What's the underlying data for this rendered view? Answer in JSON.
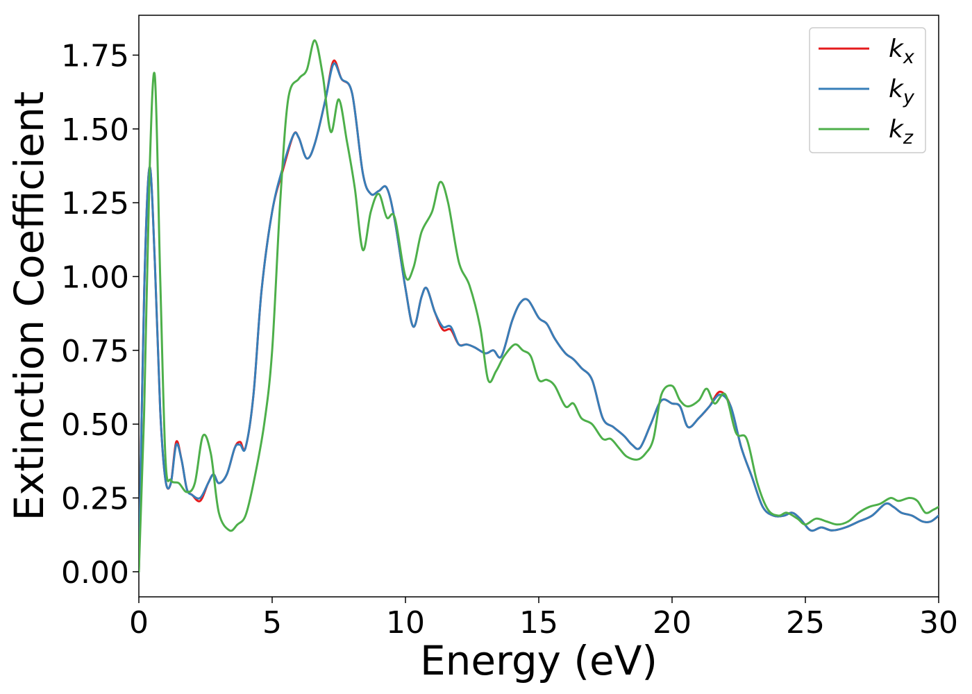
{
  "chart_data": {
    "type": "line",
    "xlabel": "Energy (eV)",
    "ylabel": "Extinction Coefficient",
    "xlim": [
      0,
      30
    ],
    "ylim": [
      -0.085,
      1.885
    ],
    "xticks": [
      0,
      5,
      10,
      15,
      20,
      25,
      30
    ],
    "xtick_labels": [
      "0",
      "5",
      "10",
      "15",
      "20",
      "25",
      "30"
    ],
    "yticks": [
      0.0,
      0.25,
      0.5,
      0.75,
      1.0,
      1.25,
      1.5,
      1.75
    ],
    "ytick_labels": [
      "0.00",
      "0.25",
      "0.50",
      "0.75",
      "1.00",
      "1.25",
      "1.50",
      "1.75"
    ],
    "grid": false,
    "legend_position": "top-right",
    "series": [
      {
        "name": "k",
        "subscript": "x",
        "color": "#e41a1c",
        "x": [
          0,
          0.2,
          0.4,
          0.6,
          0.8,
          1.0,
          1.2,
          1.4,
          1.6,
          1.8,
          2.0,
          2.3,
          2.6,
          2.8,
          3.0,
          3.3,
          3.6,
          3.8,
          4.0,
          4.3,
          4.6,
          5.0,
          5.4,
          5.8,
          6.0,
          6.3,
          6.6,
          7.0,
          7.3,
          7.6,
          8.0,
          8.4,
          8.7,
          9.0,
          9.3,
          9.6,
          10.0,
          10.3,
          10.6,
          10.8,
          11.1,
          11.4,
          11.7,
          12.0,
          12.3,
          12.6,
          13.0,
          13.3,
          13.6,
          14.0,
          14.3,
          14.6,
          15.0,
          15.3,
          15.6,
          16.0,
          16.3,
          16.6,
          17.0,
          17.4,
          17.8,
          18.2,
          18.5,
          18.8,
          19.2,
          19.6,
          20.0,
          20.3,
          20.6,
          21.0,
          21.4,
          21.8,
          22.2,
          22.6,
          23.0,
          23.4,
          23.8,
          24.2,
          24.5,
          24.8,
          25.2,
          25.6,
          26.0,
          26.5,
          27.0,
          27.5,
          28.0,
          28.3,
          28.6,
          29.0,
          29.4,
          29.7,
          30.0
        ],
        "y": [
          0.0,
          0.95,
          1.37,
          1.05,
          0.55,
          0.31,
          0.3,
          0.44,
          0.38,
          0.28,
          0.26,
          0.24,
          0.3,
          0.33,
          0.3,
          0.33,
          0.42,
          0.44,
          0.42,
          0.6,
          0.95,
          1.22,
          1.36,
          1.48,
          1.47,
          1.4,
          1.45,
          1.6,
          1.73,
          1.67,
          1.62,
          1.35,
          1.28,
          1.29,
          1.3,
          1.19,
          0.96,
          0.83,
          0.93,
          0.96,
          0.88,
          0.82,
          0.82,
          0.77,
          0.77,
          0.76,
          0.74,
          0.75,
          0.73,
          0.85,
          0.91,
          0.92,
          0.86,
          0.84,
          0.79,
          0.74,
          0.72,
          0.69,
          0.65,
          0.52,
          0.49,
          0.46,
          0.43,
          0.42,
          0.5,
          0.58,
          0.57,
          0.56,
          0.49,
          0.52,
          0.56,
          0.61,
          0.56,
          0.42,
          0.32,
          0.22,
          0.19,
          0.19,
          0.2,
          0.18,
          0.14,
          0.15,
          0.14,
          0.15,
          0.17,
          0.19,
          0.23,
          0.22,
          0.2,
          0.19,
          0.17,
          0.17,
          0.19
        ]
      },
      {
        "name": "k",
        "subscript": "y",
        "color": "#377eb8",
        "x": [
          0,
          0.2,
          0.4,
          0.6,
          0.8,
          1.0,
          1.2,
          1.4,
          1.6,
          1.8,
          2.0,
          2.3,
          2.6,
          2.8,
          3.0,
          3.3,
          3.6,
          3.8,
          4.0,
          4.3,
          4.6,
          5.0,
          5.4,
          5.8,
          6.0,
          6.3,
          6.6,
          7.0,
          7.3,
          7.6,
          8.0,
          8.4,
          8.7,
          9.0,
          9.3,
          9.6,
          10.0,
          10.3,
          10.6,
          10.8,
          11.1,
          11.4,
          11.7,
          12.0,
          12.3,
          12.6,
          13.0,
          13.3,
          13.6,
          14.0,
          14.3,
          14.6,
          15.0,
          15.3,
          15.6,
          16.0,
          16.3,
          16.6,
          17.0,
          17.4,
          17.8,
          18.2,
          18.5,
          18.8,
          19.2,
          19.6,
          20.0,
          20.3,
          20.6,
          21.0,
          21.4,
          21.8,
          22.2,
          22.6,
          23.0,
          23.4,
          23.8,
          24.2,
          24.5,
          24.8,
          25.2,
          25.6,
          26.0,
          26.5,
          27.0,
          27.5,
          28.0,
          28.3,
          28.6,
          29.0,
          29.4,
          29.7,
          30.0
        ],
        "y": [
          0.0,
          0.95,
          1.37,
          1.05,
          0.55,
          0.31,
          0.3,
          0.43,
          0.38,
          0.28,
          0.26,
          0.25,
          0.3,
          0.33,
          0.3,
          0.33,
          0.42,
          0.43,
          0.42,
          0.6,
          0.95,
          1.22,
          1.37,
          1.48,
          1.47,
          1.4,
          1.45,
          1.6,
          1.72,
          1.67,
          1.62,
          1.35,
          1.28,
          1.29,
          1.3,
          1.19,
          0.96,
          0.83,
          0.93,
          0.96,
          0.88,
          0.83,
          0.83,
          0.77,
          0.77,
          0.76,
          0.74,
          0.75,
          0.73,
          0.85,
          0.91,
          0.92,
          0.86,
          0.84,
          0.79,
          0.74,
          0.72,
          0.69,
          0.65,
          0.52,
          0.49,
          0.46,
          0.43,
          0.42,
          0.5,
          0.58,
          0.57,
          0.56,
          0.49,
          0.52,
          0.56,
          0.6,
          0.56,
          0.42,
          0.32,
          0.22,
          0.19,
          0.19,
          0.2,
          0.18,
          0.14,
          0.15,
          0.14,
          0.15,
          0.17,
          0.19,
          0.23,
          0.22,
          0.2,
          0.19,
          0.17,
          0.17,
          0.19
        ]
      },
      {
        "name": "k",
        "subscript": "z",
        "color": "#4daf4a",
        "x": [
          0,
          0.2,
          0.4,
          0.6,
          0.8,
          1.0,
          1.2,
          1.5,
          1.8,
          2.1,
          2.4,
          2.7,
          3.0,
          3.4,
          3.7,
          4.0,
          4.3,
          4.7,
          5.0,
          5.3,
          5.6,
          6.0,
          6.3,
          6.6,
          6.9,
          7.2,
          7.5,
          7.8,
          8.1,
          8.4,
          8.7,
          9.0,
          9.3,
          9.6,
          10.0,
          10.3,
          10.6,
          11.0,
          11.3,
          11.6,
          12.0,
          12.4,
          12.8,
          13.1,
          13.4,
          13.7,
          14.1,
          14.4,
          14.7,
          15.0,
          15.3,
          15.6,
          16.0,
          16.3,
          16.6,
          17.0,
          17.4,
          17.7,
          18.0,
          18.3,
          18.7,
          19.0,
          19.3,
          19.6,
          20.0,
          20.3,
          20.6,
          21.0,
          21.3,
          21.6,
          22.0,
          22.4,
          22.8,
          23.2,
          23.6,
          24.0,
          24.3,
          24.7,
          25.0,
          25.4,
          25.8,
          26.2,
          26.6,
          27.0,
          27.4,
          27.8,
          28.2,
          28.5,
          28.9,
          29.2,
          29.5,
          29.8,
          30.0
        ],
        "y": [
          0.0,
          0.55,
          1.35,
          1.68,
          1.0,
          0.38,
          0.31,
          0.3,
          0.27,
          0.3,
          0.46,
          0.4,
          0.2,
          0.14,
          0.16,
          0.19,
          0.3,
          0.5,
          0.75,
          1.25,
          1.6,
          1.67,
          1.7,
          1.8,
          1.68,
          1.49,
          1.6,
          1.46,
          1.3,
          1.09,
          1.22,
          1.28,
          1.2,
          1.2,
          1.0,
          1.03,
          1.15,
          1.22,
          1.32,
          1.25,
          1.05,
          0.97,
          0.83,
          0.65,
          0.68,
          0.73,
          0.77,
          0.75,
          0.73,
          0.65,
          0.65,
          0.63,
          0.56,
          0.57,
          0.52,
          0.5,
          0.45,
          0.45,
          0.42,
          0.39,
          0.38,
          0.4,
          0.45,
          0.6,
          0.63,
          0.58,
          0.56,
          0.58,
          0.62,
          0.57,
          0.6,
          0.47,
          0.45,
          0.3,
          0.21,
          0.19,
          0.2,
          0.18,
          0.16,
          0.18,
          0.17,
          0.16,
          0.17,
          0.2,
          0.22,
          0.23,
          0.25,
          0.24,
          0.25,
          0.24,
          0.2,
          0.21,
          0.22
        ]
      }
    ]
  }
}
